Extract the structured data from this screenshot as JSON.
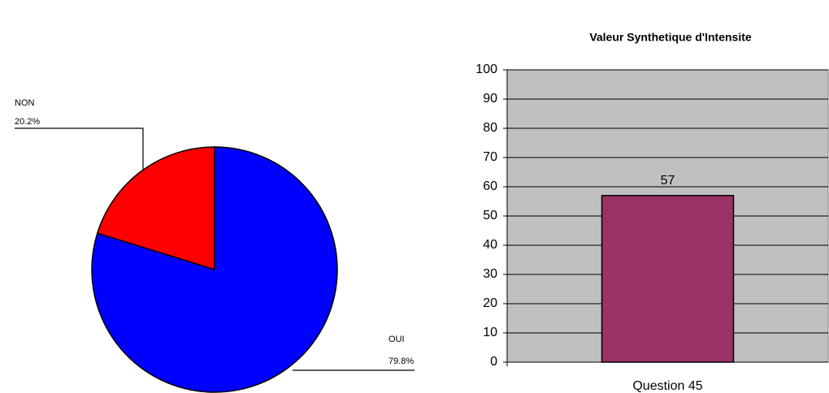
{
  "chart_data": [
    {
      "type": "pie",
      "categories": [
        "NON",
        "OUI"
      ],
      "values": [
        20.2,
        79.8
      ],
      "value_labels": [
        "20.2%",
        "79.8%"
      ],
      "colors": [
        "#ff0000",
        "#0000ff"
      ]
    },
    {
      "type": "bar",
      "title": "Valeur Synthetique d'Intensite",
      "categories": [
        "Question 45"
      ],
      "values": [
        57
      ],
      "color": "#993366",
      "ylim": [
        0,
        100
      ],
      "yticks": [
        0,
        10,
        20,
        30,
        40,
        50,
        60,
        70,
        80,
        90,
        100
      ],
      "grid": true
    }
  ]
}
